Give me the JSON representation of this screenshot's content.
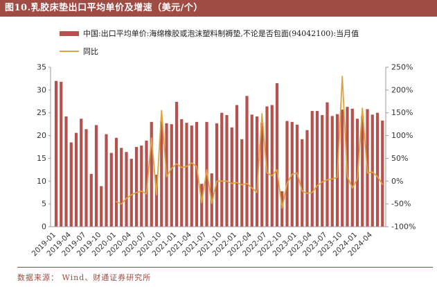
{
  "title": {
    "text": "图10.乳胶床垫出口平均单价及增速（美元/个）"
  },
  "legend": {
    "series": [
      {
        "label": "中国:出口平均单价:海绵橡胶或泡沫塑料制褥垫,不论是否包面(94042100):当月值",
        "swatch": "bar"
      },
      {
        "label": "同比",
        "swatch": "line"
      }
    ]
  },
  "footer": {
    "source_text": "数据来源： Wind、财通证券研究所"
  },
  "colors": {
    "header_bg": "#A04B44",
    "bar": "#B5524E",
    "line": "#E0A23E",
    "axis": "#999999",
    "tick_text": "#333333",
    "footer_text": "#A04B44"
  },
  "chart_data": {
    "type": "bar",
    "title": "",
    "xlabel": "",
    "ylabel_left": "",
    "ylabel_right": "",
    "categories": [
      "2019-01",
      "2019-02",
      "2019-03",
      "2019-04",
      "2019-05",
      "2019-06",
      "2019-07",
      "2019-08",
      "2019-09",
      "2019-10",
      "2019-11",
      "2019-12",
      "2020-01",
      "2020-02",
      "2020-03",
      "2020-04",
      "2020-05",
      "2020-06",
      "2020-07",
      "2020-08",
      "2020-09",
      "2020-10",
      "2020-11",
      "2020-12",
      "2021-01",
      "2021-02",
      "2021-03",
      "2021-04",
      "2021-05",
      "2021-06",
      "2021-07",
      "2021-08",
      "2021-09",
      "2021-10",
      "2021-11",
      "2021-12",
      "2022-01",
      "2022-02",
      "2022-03",
      "2022-04",
      "2022-05",
      "2022-06",
      "2022-07",
      "2022-08",
      "2022-09",
      "2022-10",
      "2022-11",
      "2022-12",
      "2023-01",
      "2023-02",
      "2023-03",
      "2023-04",
      "2023-05",
      "2023-06",
      "2023-07",
      "2023-08",
      "2023-09",
      "2023-10",
      "2023-11",
      "2023-12",
      "2024-01",
      "2024-02",
      "2024-03",
      "2024-04",
      "2024-05",
      "2024-06"
    ],
    "series": [
      {
        "name": "中国:出口平均单价:海绵橡胶或泡沫塑料制褥垫,不论是否包面(94042100):当月值",
        "type": "bar",
        "axis": "left",
        "values": [
          32.0,
          31.8,
          24.2,
          18.5,
          20.6,
          23.7,
          21.4,
          11.6,
          22.3,
          8.9,
          20.3,
          16.2,
          19.5,
          17.3,
          16.4,
          14.9,
          17.5,
          17.8,
          18.9,
          23.0,
          11.4,
          23.1,
          22.7,
          22.5,
          27.4,
          23.6,
          22.8,
          22.2,
          23.0,
          9.4,
          23.0,
          11.7,
          22.7,
          25.0,
          24.5,
          21.8,
          26.7,
          19.2,
          28.7,
          24.6,
          24.2,
          22.8,
          26.4,
          26.7,
          31.5,
          7.8,
          23.2,
          23.0,
          22.4,
          19.2,
          21.2,
          25.4,
          25.4,
          24.5,
          27.3,
          24.3,
          24.7,
          25.7,
          26.3,
          25.9,
          23.7,
          24.3,
          25.8,
          24.6,
          25.0,
          23.3
        ]
      },
      {
        "name": "同比",
        "type": "line",
        "axis": "right",
        "values": [
          null,
          null,
          null,
          null,
          null,
          null,
          null,
          null,
          null,
          null,
          null,
          null,
          -45,
          -50,
          -38,
          -30,
          -25,
          -22,
          -28,
          95,
          -30,
          155,
          10,
          28,
          38,
          30,
          32,
          40,
          32,
          -47,
          25,
          -49,
          0,
          0,
          0,
          -5,
          -3,
          -8,
          -5,
          -15,
          -25,
          148,
          18,
          12,
          25,
          -59,
          -5,
          15,
          18,
          -22,
          -27,
          -25,
          -10,
          -2,
          3,
          5,
          8,
          230,
          10,
          -15,
          5,
          160,
          18,
          20,
          10,
          -7
        ]
      }
    ],
    "left_axis": {
      "min": 0,
      "max": 35,
      "step": 5,
      "tick_labels": [
        "0",
        "5",
        "10",
        "15",
        "20",
        "25",
        "30",
        "35"
      ]
    },
    "right_axis": {
      "min": -100,
      "max": 250,
      "step": 50,
      "tick_labels": [
        "-100%",
        "-50%",
        "0%",
        "50%",
        "100%",
        "150%",
        "200%",
        "250%"
      ],
      "suffix": "%"
    },
    "xtick_every": 3,
    "grid": false,
    "legend_position": "top-left"
  }
}
